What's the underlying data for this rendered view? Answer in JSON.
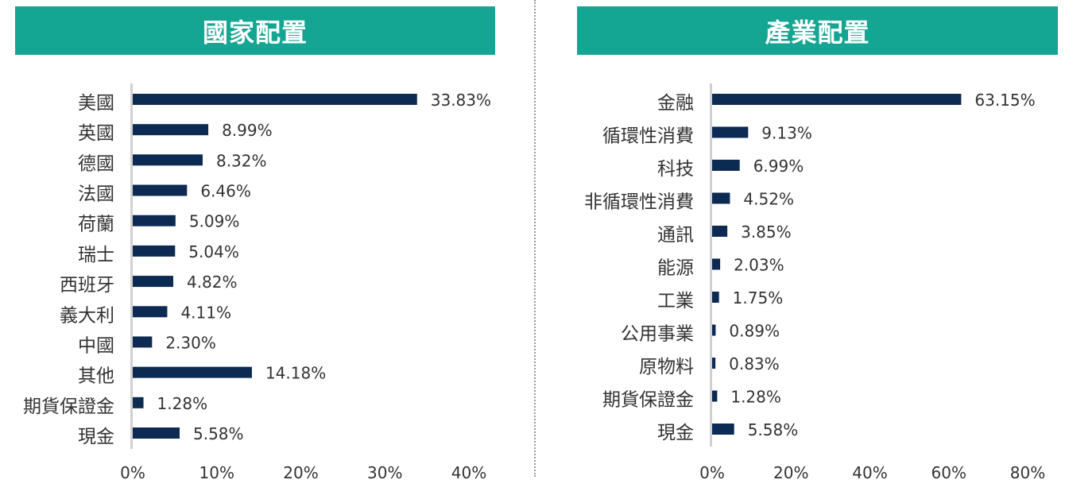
{
  "colors": {
    "header_bg": "#14a693",
    "header_text": "#ffffff",
    "bar": "#0c2a52",
    "axis": "#d0d0d0",
    "text": "#333333"
  },
  "chart_data": [
    {
      "type": "bar",
      "orientation": "horizontal",
      "title": "國家配置",
      "categories": [
        "美國",
        "英國",
        "德國",
        "法國",
        "荷蘭",
        "瑞士",
        "西班牙",
        "義大利",
        "中國",
        "其他",
        "期貨保證金",
        "現金"
      ],
      "values": [
        33.83,
        8.99,
        8.32,
        6.46,
        5.09,
        5.04,
        4.82,
        4.11,
        2.3,
        14.18,
        1.28,
        5.58
      ],
      "data_labels": [
        "33.83%",
        "8.99%",
        "8.32%",
        "6.46%",
        "5.09%",
        "5.04%",
        "4.82%",
        "4.11%",
        "2.30%",
        "14.18%",
        "1.28%",
        "5.58%"
      ],
      "xlim": [
        0,
        40
      ],
      "xticks": [
        "0%",
        "10%",
        "20%",
        "30%",
        "40%"
      ],
      "grid": false
    },
    {
      "type": "bar",
      "orientation": "horizontal",
      "title": "產業配置",
      "categories": [
        "金融",
        "循環性消費",
        "科技",
        "非循環性消費",
        "通訊",
        "能源",
        "工業",
        "公用事業",
        "原物料",
        "期貨保證金",
        "現金"
      ],
      "values": [
        63.15,
        9.13,
        6.99,
        4.52,
        3.85,
        2.03,
        1.75,
        0.89,
        0.83,
        1.28,
        5.58
      ],
      "data_labels": [
        "63.15%",
        "9.13%",
        "6.99%",
        "4.52%",
        "3.85%",
        "2.03%",
        "1.75%",
        "0.89%",
        "0.83%",
        "1.28%",
        "5.58%"
      ],
      "xlim": [
        0,
        80
      ],
      "xticks": [
        "0%",
        "20%",
        "40%",
        "60%",
        "80%"
      ],
      "grid": false
    }
  ]
}
